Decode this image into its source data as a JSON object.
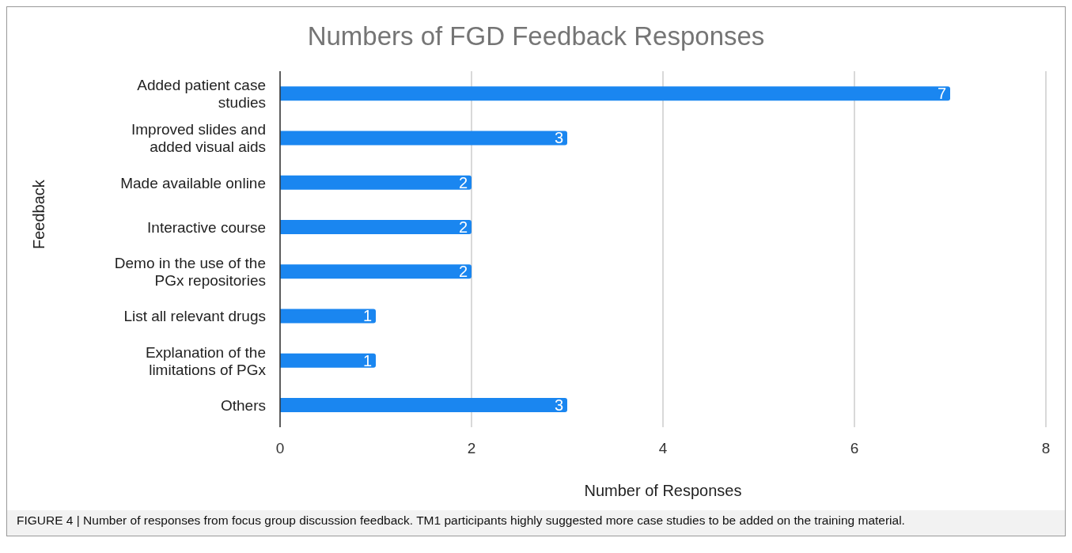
{
  "chart_data": {
    "type": "bar",
    "orientation": "horizontal",
    "title": "Numbers of FGD Feedback Responses",
    "xlabel": "Number of Responses",
    "ylabel": "Feedback",
    "categories": [
      "Added patient case studies",
      "Improved slides and added visual aids",
      "Made available online",
      "Interactive course",
      "Demo in the use of the PGx repositories",
      "List all relevant drugs",
      "Explanation of the limitations of PGx",
      "Others"
    ],
    "values": [
      7,
      3,
      2,
      2,
      2,
      1,
      1,
      3
    ],
    "color": "#1a86f0",
    "xlim": [
      0,
      8
    ],
    "xticks": [
      0,
      2,
      4,
      6,
      8
    ],
    "grid": "x",
    "data_labels": true,
    "legend": false,
    "annotations": [
      "FIGURE 4 | Number of responses from focus group discussion feedback. TM1 participants highly suggested more case studies to be added on the training material."
    ]
  }
}
